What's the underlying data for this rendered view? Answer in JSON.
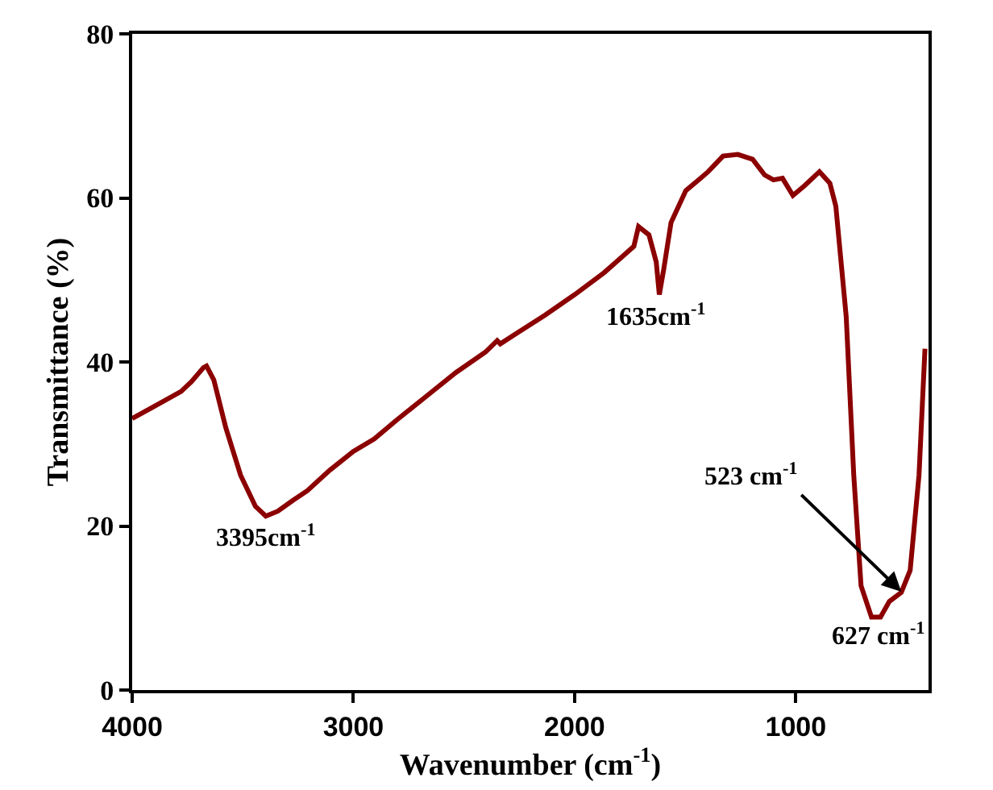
{
  "chart_data": {
    "type": "line",
    "xlabel": "Wavenumber (cm$^{-1}$)",
    "ylabel": "Transmittance (%)",
    "xlim": [
      4000,
      400
    ],
    "xticks": [
      4000,
      3000,
      2000,
      1000
    ],
    "ylim": [
      0,
      80
    ],
    "yticks": [
      0,
      20,
      40,
      60,
      80
    ],
    "marker": "none",
    "line_style": "solid",
    "series": [
      {
        "color": "#8b0000",
        "x": [
          4000,
          3879,
          3779,
          3732,
          3678,
          3664,
          3631,
          3577,
          3510,
          3443,
          3396,
          3342,
          3275,
          3208,
          3107,
          3000,
          2906,
          2805,
          2671,
          2537,
          2403,
          2350,
          2336,
          2268,
          2134,
          2000,
          1866,
          1732,
          1711,
          1664,
          1631,
          1617,
          1597,
          1564,
          1497,
          1430,
          1396,
          1329,
          1262,
          1195,
          1141,
          1101,
          1060,
          1013,
          960,
          893,
          846,
          819,
          772,
          738,
          705,
          658,
          617,
          577,
          523,
          483,
          443,
          416
        ],
        "values": [
          33.1,
          34.9,
          36.4,
          37.6,
          39.3,
          39.5,
          37.8,
          32,
          26.2,
          22.4,
          21.2,
          21.8,
          23.1,
          24.3,
          26.8,
          29.1,
          30.6,
          32.9,
          35.8,
          38.7,
          41.2,
          42.6,
          42.2,
          43.4,
          45.7,
          48.2,
          50.9,
          54.1,
          56.5,
          55.5,
          52.2,
          48.2,
          51.3,
          57,
          60.9,
          62.4,
          63.2,
          65.1,
          65.3,
          64.7,
          62.8,
          62.2,
          62.4,
          60.3,
          61.5,
          63.2,
          61.8,
          59,
          45.5,
          26.2,
          12.7,
          8.9,
          8.9,
          10.8,
          11.9,
          14.6,
          26.2,
          41.6
        ]
      }
    ],
    "annotations": [
      {
        "text": "3395cm$^{-1}$",
        "x": 3395,
        "y": 21
      },
      {
        "text": "1635cm$^{-1}$",
        "x": 1635,
        "y": 48
      },
      {
        "text": "627 cm$^{-1}$",
        "x": 627,
        "y": 9
      },
      {
        "text": "523 cm$^{-1}$",
        "x": 523,
        "y": 12
      }
    ]
  }
}
